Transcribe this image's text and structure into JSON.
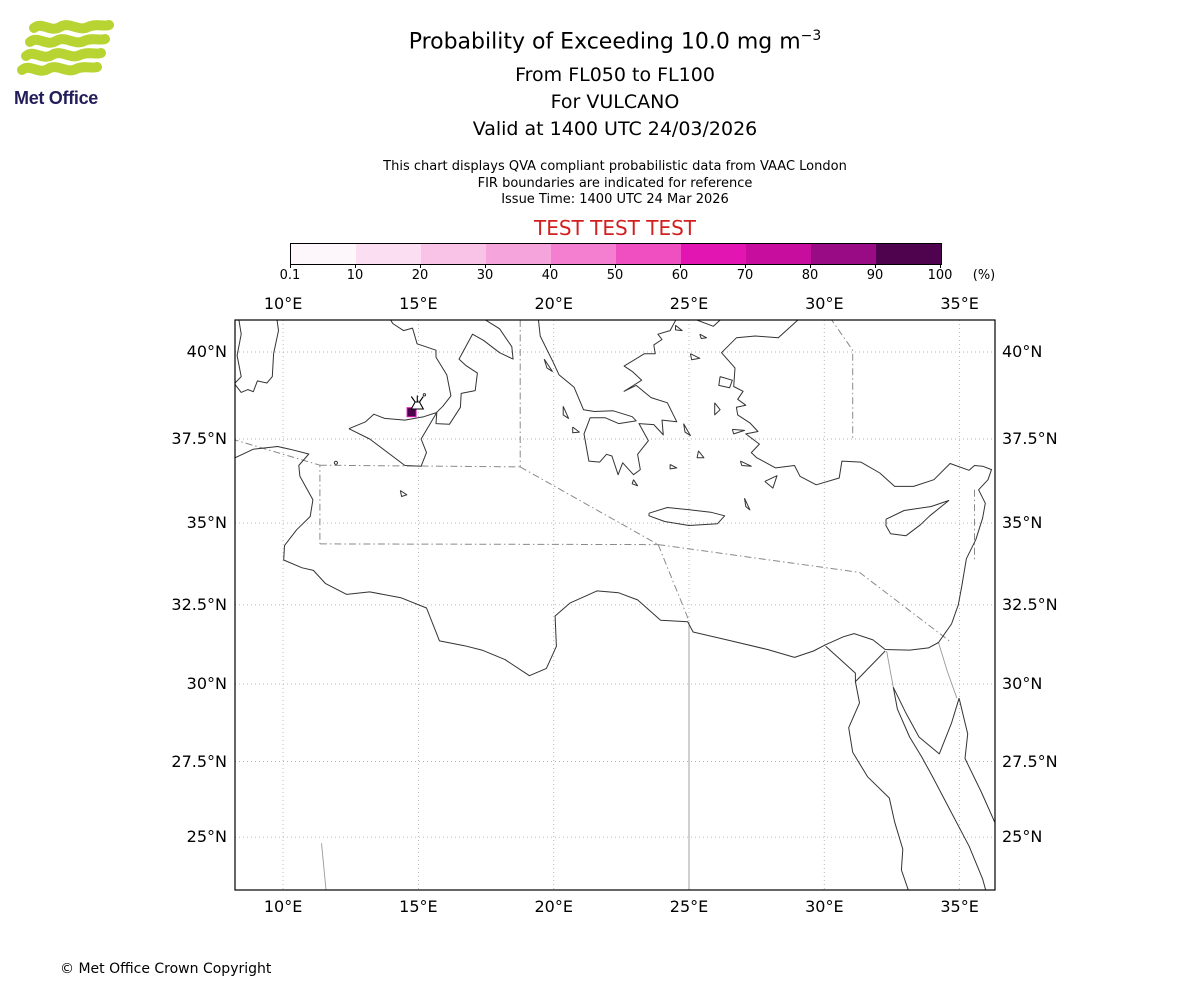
{
  "header": {
    "logo_text": "Met Office",
    "title_main": "Probability of Exceeding 10.0 mg m",
    "title_exponent": "−3",
    "flight_levels": "From FL050 to FL100",
    "volcano_line": "For VULCANO",
    "valid_line": "Valid at 1400 UTC 24/03/2026",
    "note_qva": "This chart displays QVA compliant probabilistic data from VAAC London",
    "note_fir": "FIR boundaries are indicated for reference",
    "note_issue": "Issue Time: 1400 UTC 24 Mar 2026",
    "test_banner": "TEST TEST TEST",
    "test_banner_color": "#d21f1f"
  },
  "colorbar": {
    "tick_labels": [
      "0.1",
      "10",
      "20",
      "30",
      "40",
      "50",
      "60",
      "70",
      "80",
      "90",
      "100"
    ],
    "unit": "(%)",
    "colors": [
      "#fdf6fb",
      "#fbdef2",
      "#f9c3e8",
      "#f6a4dc",
      "#f47fd0",
      "#ef4fc0",
      "#e215b2",
      "#c60d9d",
      "#990b85",
      "#4f034e"
    ]
  },
  "map": {
    "lon_labels": [
      "10°E",
      "15°E",
      "20°E",
      "25°E",
      "30°E",
      "35°E"
    ],
    "lat_labels": [
      "40°N",
      "37.5°N",
      "35°N",
      "32.5°N",
      "30°N",
      "27.5°N",
      "25°N"
    ]
  },
  "chart_data": {
    "type": "heatmap",
    "title": "Probability of Exceeding 10.0 mg m−3",
    "subtitle": "From FL050 to FL100, For VULCANO, Valid at 1400 UTC 24/03/2026",
    "units": "%",
    "colorbar_ticks": [
      0.1,
      10,
      20,
      30,
      40,
      50,
      60,
      70,
      80,
      90,
      100
    ],
    "x_axis": {
      "label": "longitude",
      "ticks_deg_e": [
        10,
        15,
        20,
        25,
        30,
        35
      ],
      "range_deg_e": [
        8.2,
        36.3
      ]
    },
    "y_axis": {
      "label": "latitude",
      "ticks_deg_n": [
        40,
        37.5,
        35,
        32.5,
        30,
        27.5,
        25
      ],
      "range_deg_n": [
        23.2,
        40.9
      ]
    },
    "grid": true,
    "legend_position": "top",
    "volcano": {
      "name": "VULCANO",
      "lon_deg_e": 14.96,
      "lat_deg_n": 38.4
    },
    "probability_regions": [
      {
        "lon_deg_e": 14.75,
        "lat_deg_n": 38.28,
        "probability_percent": "90-100",
        "approx_extent_deg": 0.35
      }
    ]
  },
  "footer": {
    "copyright": "© Met Office Crown Copyright"
  }
}
